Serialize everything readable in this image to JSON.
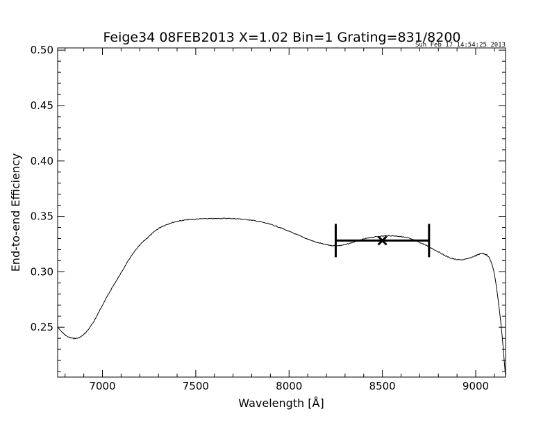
{
  "chart_data": {
    "type": "line",
    "title": "Feige34 08FEB2013 X=1.02 Bin=1 Grating=831/8200",
    "timestamp": "Sun Feb 17 14:54:25 2013",
    "xlabel": "Wavelength [Å]",
    "ylabel": "End-to-end Efficiency",
    "xlim": [
      6760,
      9160
    ],
    "ylim": [
      0.205,
      0.502
    ],
    "xticks": [
      7000,
      7500,
      8000,
      8500,
      9000
    ],
    "xtick_labels": [
      "7000",
      "7500",
      "8000",
      "8500",
      "9000"
    ],
    "yticks": [
      0.25,
      0.3,
      0.35,
      0.4,
      0.45,
      0.5
    ],
    "ytick_labels": [
      "0.25",
      "0.30",
      "0.35",
      "0.40",
      "0.45",
      "0.50"
    ],
    "grid": false,
    "series": [
      {
        "x": [
          6760,
          6800,
          6840,
          6880,
          6920,
          6960,
          7000,
          7050,
          7100,
          7150,
          7200,
          7250,
          7300,
          7350,
          7400,
          7450,
          7500,
          7550,
          7600,
          7650,
          7700,
          7750,
          7800,
          7850,
          7900,
          7950,
          8000,
          8050,
          8100,
          8150,
          8200,
          8250,
          8300,
          8350,
          8400,
          8450,
          8500,
          8550,
          8600,
          8650,
          8700,
          8750,
          8800,
          8850,
          8900,
          8950,
          9000,
          9030,
          9060,
          9080,
          9100,
          9120,
          9140,
          9160
        ],
        "y": [
          0.25,
          0.243,
          0.24,
          0.241,
          0.247,
          0.257,
          0.27,
          0.285,
          0.299,
          0.313,
          0.324,
          0.332,
          0.339,
          0.343,
          0.3455,
          0.3468,
          0.3475,
          0.3479,
          0.348,
          0.3482,
          0.348,
          0.3475,
          0.3465,
          0.345,
          0.3428,
          0.34,
          0.3365,
          0.333,
          0.3295,
          0.3265,
          0.3245,
          0.3235,
          0.3245,
          0.327,
          0.3295,
          0.3312,
          0.3322,
          0.3325,
          0.3318,
          0.3298,
          0.3265,
          0.3225,
          0.318,
          0.3135,
          0.311,
          0.3115,
          0.3145,
          0.3165,
          0.315,
          0.31,
          0.298,
          0.275,
          0.245,
          0.205
        ]
      }
    ],
    "annotation": {
      "point": [
        8500,
        0.3282
      ],
      "range": [
        8250,
        8750
      ],
      "marker": "x"
    }
  }
}
